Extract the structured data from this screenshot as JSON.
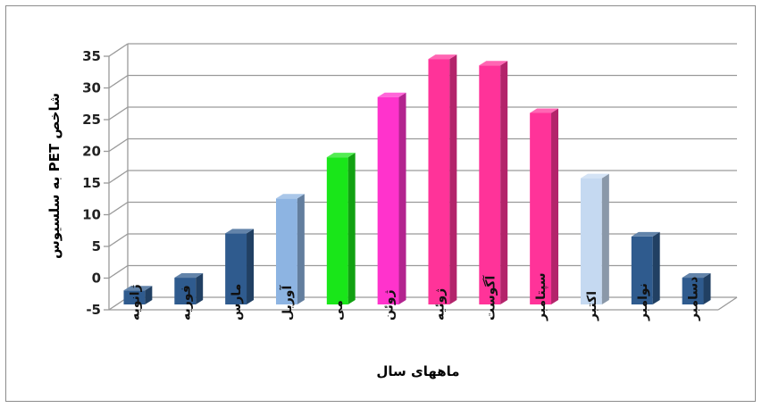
{
  "chart_data": {
    "type": "bar",
    "title": "",
    "xlabel": "ماههای سال",
    "ylabel": "شاخص PET به سلسیوس",
    "ylim": [
      -5,
      35
    ],
    "yticks": [
      -5,
      0,
      5,
      10,
      15,
      20,
      25,
      30,
      35
    ],
    "grid": true,
    "categories": [
      "ژانویه",
      "فوریه",
      "مارس",
      "آوریل",
      "می",
      "ژوئن",
      "ژوئیه",
      "آگوست",
      "سپتامبر",
      "اکتبر",
      "نوامبر",
      "دسامبر"
    ],
    "values": [
      -2.5,
      -0.5,
      6.5,
      12,
      18.5,
      28,
      34,
      33,
      25.5,
      15.2,
      6,
      -0.5
    ],
    "colors": [
      "#2f5b8e",
      "#2f5b8e",
      "#2f5b8e",
      "#8db4e2",
      "#19e619",
      "#ff33cc",
      "#ff3399",
      "#ff3399",
      "#ff3399",
      "#c5d9f1",
      "#2f5b8e",
      "#2f5b8e"
    ]
  }
}
